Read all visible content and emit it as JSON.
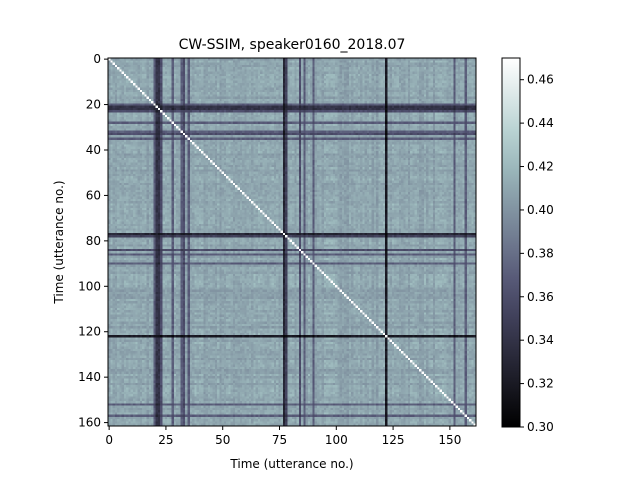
{
  "chart_data": {
    "type": "heatmap",
    "title": "CW-SSIM, speaker0160_2018.07",
    "xlabel": "Time (utterance no.)",
    "ylabel": "Time (utterance no.)",
    "n": 162,
    "x_ticks": [
      0,
      25,
      50,
      75,
      100,
      125,
      150
    ],
    "y_ticks": [
      0,
      20,
      40,
      60,
      80,
      100,
      120,
      140,
      160
    ],
    "colorbar": {
      "colormap": "bone",
      "vmin": 0.3,
      "vmax": 0.47,
      "ticks": [
        "0.30",
        "0.32",
        "0.34",
        "0.36",
        "0.38",
        "0.40",
        "0.42",
        "0.44",
        "0.46"
      ]
    },
    "diagonal_value": 0.47,
    "typical_value": 0.41,
    "low_similarity_utterances": [
      {
        "index": 20,
        "value": 0.37
      },
      {
        "index": 21,
        "value": 0.34
      },
      {
        "index": 22,
        "value": 0.34
      },
      {
        "index": 23,
        "value": 0.36
      },
      {
        "index": 28,
        "value": 0.37
      },
      {
        "index": 32,
        "value": 0.37
      },
      {
        "index": 33,
        "value": 0.36
      },
      {
        "index": 35,
        "value": 0.37
      },
      {
        "index": 77,
        "value": 0.33
      },
      {
        "index": 78,
        "value": 0.35
      },
      {
        "index": 84,
        "value": 0.36
      },
      {
        "index": 86,
        "value": 0.37
      },
      {
        "index": 90,
        "value": 0.37
      },
      {
        "index": 122,
        "value": 0.32
      },
      {
        "index": 152,
        "value": 0.37
      },
      {
        "index": 157,
        "value": 0.37
      }
    ]
  }
}
